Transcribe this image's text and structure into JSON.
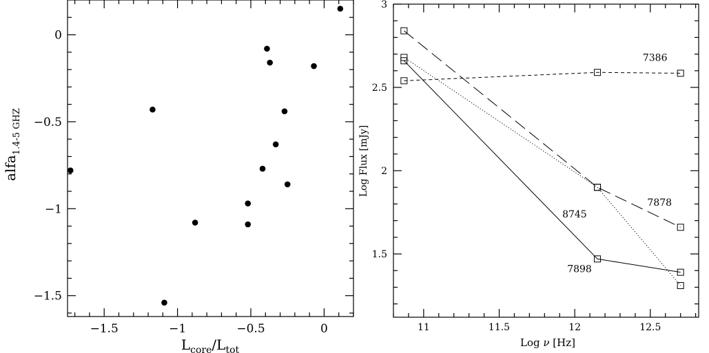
{
  "chart_data": [
    {
      "type": "scatter",
      "xlabel_main": "L",
      "xlabel_sub1": "core",
      "xlabel_mid": "/L",
      "xlabel_sub2": "tot",
      "ylabel_main": "alfa",
      "ylabel_sub": "1.4-5 GHZ",
      "xlim": [
        -1.75,
        0.2
      ],
      "ylim": [
        -1.62,
        0.2
      ],
      "xticks": [
        -1.5,
        -1,
        -0.5,
        0
      ],
      "xtick_labels": [
        "−1.5",
        "−1",
        "−0.5",
        "0"
      ],
      "yticks": [
        0,
        -0.5,
        -1,
        -1.5
      ],
      "ytick_labels": [
        "0",
        "−0.5",
        "−1",
        "−1.5"
      ],
      "points": [
        {
          "x": -1.73,
          "y": -0.78
        },
        {
          "x": -1.17,
          "y": -0.43
        },
        {
          "x": -1.09,
          "y": -1.54
        },
        {
          "x": -0.88,
          "y": -1.08
        },
        {
          "x": -0.52,
          "y": -0.97
        },
        {
          "x": -0.52,
          "y": -1.09
        },
        {
          "x": -0.42,
          "y": -0.77
        },
        {
          "x": -0.39,
          "y": -0.08
        },
        {
          "x": -0.37,
          "y": -0.16
        },
        {
          "x": -0.33,
          "y": -0.63
        },
        {
          "x": -0.27,
          "y": -0.44
        },
        {
          "x": -0.25,
          "y": -0.86
        },
        {
          "x": -0.07,
          "y": -0.18
        },
        {
          "x": 0.11,
          "y": 0.15
        }
      ]
    },
    {
      "type": "line",
      "xlabel_main": "Log ",
      "xlabel_nu": "ν",
      "xlabel_unit": " [Hz]",
      "ylabel": "Log Flux [mJy]",
      "xlim": [
        10.8,
        12.82
      ],
      "ylim": [
        1.12,
        3.0
      ],
      "xticks": [
        11,
        11.5,
        12,
        12.5
      ],
      "xtick_labels": [
        "11",
        "11.5",
        "12",
        "12.5"
      ],
      "yticks": [
        1.5,
        2,
        2.5,
        3
      ],
      "ytick_labels": [
        "1.5",
        "2",
        "2.5",
        "3"
      ],
      "x": [
        10.87,
        12.15,
        12.7
      ],
      "series": [
        {
          "name": "7386",
          "values": [
            2.54,
            2.59,
            2.585
          ],
          "style": "short-dash"
        },
        {
          "name": "7878",
          "values": [
            2.84,
            1.9,
            1.66
          ],
          "style": "long-dash"
        },
        {
          "name": "8745",
          "values": [
            2.68,
            1.9,
            1.31
          ],
          "style": "dotted"
        },
        {
          "name": "7898",
          "values": [
            2.66,
            1.47,
            1.39
          ],
          "style": "solid"
        }
      ]
    }
  ]
}
